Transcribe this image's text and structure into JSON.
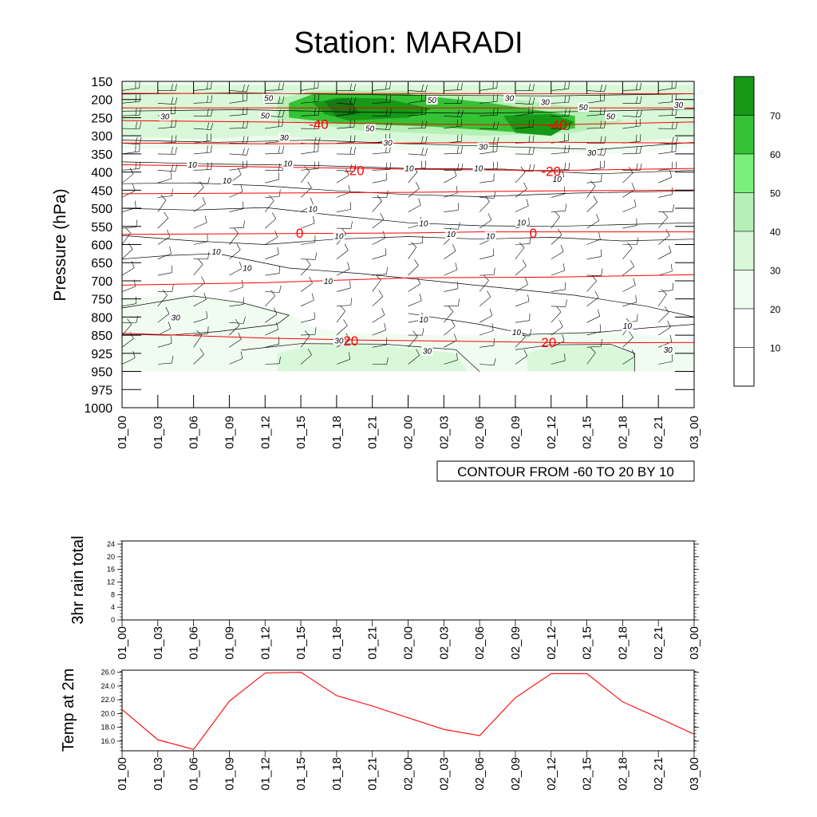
{
  "title": "Station: MARADI",
  "colors": {
    "axis": "#000000",
    "temp_contour": "#ff0000",
    "wind_contour": "#000000",
    "temp_line": "#ff0000",
    "fills": [
      "#ffffff",
      "#ffffff",
      "#f0fcf0",
      "#d9f8d9",
      "#b6f0b6",
      "#7af07a",
      "#35c235",
      "#179917"
    ]
  },
  "chart_data": [
    {
      "type": "heatmap",
      "name": "pressure-time cross section",
      "title": "Station: MARADI",
      "ylabel": "Pressure (hPa)",
      "xlabel": "",
      "x_ticks": [
        "01_00",
        "01_03",
        "01_06",
        "01_09",
        "01_12",
        "01_15",
        "01_18",
        "01_21",
        "02_00",
        "02_03",
        "02_06",
        "02_09",
        "02_12",
        "02_15",
        "02_18",
        "02_21",
        "03_00"
      ],
      "y_ticks": [
        150,
        200,
        250,
        300,
        350,
        400,
        450,
        500,
        550,
        600,
        650,
        700,
        750,
        800,
        850,
        925,
        950,
        975,
        1000
      ],
      "ylim": [
        1000,
        150
      ],
      "info_label": "CONTOUR FROM -60 TO 20 BY 10",
      "colorbar": {
        "levels": [
          10,
          20,
          30,
          40,
          50,
          60,
          70
        ],
        "level_labels": [
          "10",
          "20",
          "30",
          "40",
          "50",
          "60",
          "70"
        ]
      },
      "wind_speed_contour_labels": [
        {
          "text": "50",
          "t": 12.3,
          "p": 200
        },
        {
          "text": "50",
          "t": 26.0,
          "p": 205
        },
        {
          "text": "30",
          "t": 32.5,
          "p": 200
        },
        {
          "text": "30",
          "t": 35.5,
          "p": 210
        },
        {
          "text": "50",
          "t": 38.7,
          "p": 225
        },
        {
          "text": "30",
          "t": 46.7,
          "p": 218
        },
        {
          "text": "30",
          "t": 3.6,
          "p": 250
        },
        {
          "text": "50",
          "t": 12.0,
          "p": 248
        },
        {
          "text": "50",
          "t": 41.0,
          "p": 250
        },
        {
          "text": "50",
          "t": 20.8,
          "p": 283
        },
        {
          "text": "30",
          "t": 13.6,
          "p": 308
        },
        {
          "text": "30",
          "t": 22.3,
          "p": 323
        },
        {
          "text": "30",
          "t": 30.3,
          "p": 334
        },
        {
          "text": "30",
          "t": 39.4,
          "p": 350
        },
        {
          "text": "10",
          "t": 5.9,
          "p": 383
        },
        {
          "text": "10",
          "t": 13.9,
          "p": 380
        },
        {
          "text": "10",
          "t": 24.1,
          "p": 393
        },
        {
          "text": "10",
          "t": 29.9,
          "p": 393
        },
        {
          "text": "10",
          "t": 36.5,
          "p": 423
        },
        {
          "text": "10",
          "t": 8.8,
          "p": 427
        },
        {
          "text": "10",
          "t": 16.0,
          "p": 505
        },
        {
          "text": "10",
          "t": 25.3,
          "p": 545
        },
        {
          "text": "10",
          "t": 33.5,
          "p": 543
        },
        {
          "text": "10",
          "t": 18.2,
          "p": 580
        },
        {
          "text": "10",
          "t": 27.6,
          "p": 575
        },
        {
          "text": "10",
          "t": 30.9,
          "p": 580
        },
        {
          "text": "10",
          "t": 7.9,
          "p": 623
        },
        {
          "text": "10",
          "t": 10.5,
          "p": 668
        },
        {
          "text": "10",
          "t": 17.3,
          "p": 705
        },
        {
          "text": "30",
          "t": 4.5,
          "p": 805
        },
        {
          "text": "10",
          "t": 25.3,
          "p": 810
        },
        {
          "text": "10",
          "t": 33.1,
          "p": 845
        },
        {
          "text": "10",
          "t": 42.4,
          "p": 828
        },
        {
          "text": "30",
          "t": 18.2,
          "p": 877
        },
        {
          "text": "30",
          "t": 25.6,
          "p": 920
        },
        {
          "text": "30",
          "t": 45.8,
          "p": 915
        }
      ],
      "temperature_contour_labels": [
        {
          "text": "-40",
          "t": 16.5,
          "p": 268
        },
        {
          "text": "-40",
          "t": 36.5,
          "p": 270
        },
        {
          "text": "-20",
          "t": 19.5,
          "p": 395
        },
        {
          "text": "-20",
          "t": 36.0,
          "p": 398
        },
        {
          "text": "0",
          "t": 14.9,
          "p": 568
        },
        {
          "text": "0",
          "t": 34.5,
          "p": 568
        },
        {
          "text": "20",
          "t": 19.2,
          "p": 873
        },
        {
          "text": "20",
          "t": 35.8,
          "p": 880
        }
      ]
    },
    {
      "type": "line",
      "name": "3hr rain total",
      "ylabel": "3hr rain total",
      "x_ticks": [
        "01_00",
        "01_03",
        "01_06",
        "01_09",
        "01_12",
        "01_15",
        "01_18",
        "01_21",
        "02_00",
        "02_03",
        "02_06",
        "02_09",
        "02_12",
        "02_15",
        "02_18",
        "02_21",
        "03_00"
      ],
      "y_ticks": [
        "0",
        "4",
        "8",
        "12",
        "16",
        "20",
        "24"
      ],
      "ylim": [
        0,
        25
      ],
      "x": [
        0,
        3,
        6,
        9,
        12,
        15,
        18,
        21,
        24,
        27,
        30,
        33,
        36,
        39,
        42,
        45,
        48
      ],
      "values": [
        0,
        0,
        0,
        0,
        0,
        0,
        0,
        0,
        0,
        0,
        0,
        0,
        0,
        0,
        0,
        0,
        0
      ]
    },
    {
      "type": "line",
      "name": "Temp at 2m",
      "ylabel": "Temp at 2m",
      "x_ticks": [
        "01_00",
        "01_03",
        "01_06",
        "01_09",
        "01_12",
        "01_15",
        "01_18",
        "01_21",
        "02_00",
        "02_03",
        "02_06",
        "02_09",
        "02_12",
        "02_15",
        "02_18",
        "02_21",
        "03_00"
      ],
      "y_ticks": [
        "16.0",
        "18.0",
        "20.0",
        "22.0",
        "24.0",
        "26.0"
      ],
      "ylim": [
        14.6,
        26.3
      ],
      "x": [
        0,
        3,
        6,
        9,
        12,
        15,
        18,
        21,
        24,
        27,
        30,
        33,
        36,
        39,
        42,
        45,
        48
      ],
      "values": [
        20.6,
        16.2,
        14.8,
        21.8,
        25.9,
        26.0,
        22.6,
        21.1,
        19.4,
        17.7,
        16.8,
        22.3,
        25.8,
        25.8,
        21.7,
        19.4,
        17.0
      ]
    }
  ]
}
